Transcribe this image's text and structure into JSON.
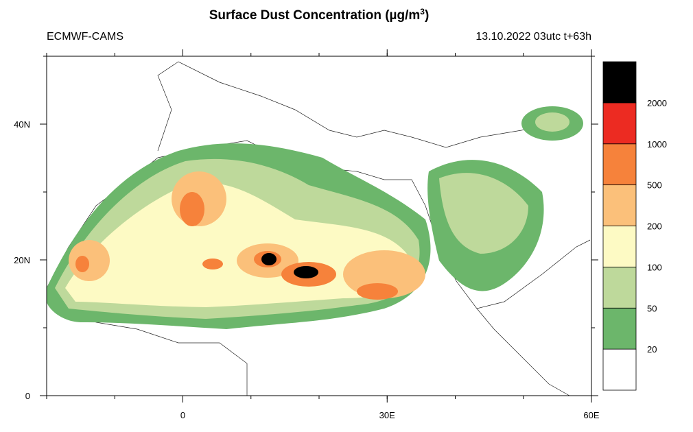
{
  "header": {
    "title": {
      "text": "Surface Dust Concentration (µg/m",
      "superscript": "3",
      "close": ")"
    },
    "left": "ECMWF-CAMS",
    "right": "13.10.2022 03utc t+63h"
  },
  "map": {
    "lon_range": [
      -20,
      60
    ],
    "lat_range": [
      0,
      50
    ],
    "lon_ticks": [
      {
        "value": 0,
        "label": "0"
      },
      {
        "value": 30,
        "label": "30E"
      },
      {
        "value": 60,
        "label": "60E"
      }
    ],
    "lat_ticks": [
      {
        "value": 0,
        "label": "0"
      },
      {
        "value": 20,
        "label": "20N"
      },
      {
        "value": 40,
        "label": "40N"
      }
    ]
  },
  "colorbar": {
    "levels": [
      {
        "value": 20,
        "label": "20"
      },
      {
        "value": 50,
        "label": "50"
      },
      {
        "value": 100,
        "label": "100"
      },
      {
        "value": 200,
        "label": "200"
      },
      {
        "value": 500,
        "label": "500"
      },
      {
        "value": 1000,
        "label": "1000"
      },
      {
        "value": 2000,
        "label": "2000"
      }
    ],
    "colors": [
      "#ffffff",
      "#6cb66b",
      "#bed99b",
      "#fdfac4",
      "#fbc07a",
      "#f6823b",
      "#ec2b22",
      "#000000"
    ]
  }
}
